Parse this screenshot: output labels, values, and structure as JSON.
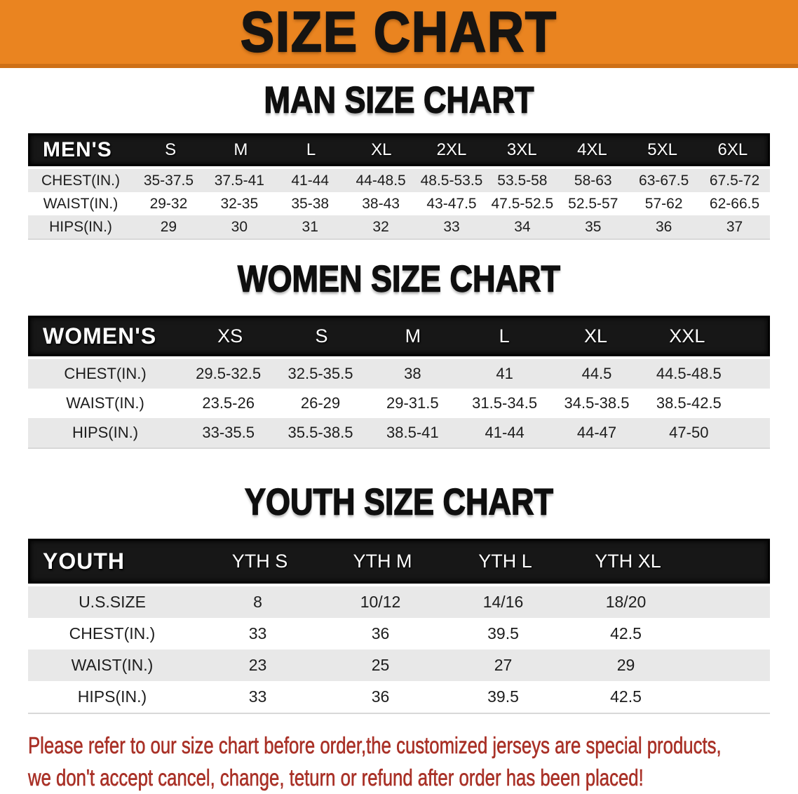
{
  "banner": {
    "title": "SIZE CHART"
  },
  "colors": {
    "banner_orange": "#EA8420",
    "banner_border": "#CE7016",
    "header_black": "#171717",
    "row_gray": "#E8E8E8",
    "row_white": "#FFFFFF",
    "disclaimer_red": "#A93127"
  },
  "sections": [
    {
      "id": "men",
      "title": "MAN SIZE CHART",
      "table": {
        "header_label": "MEN'S",
        "columns": [
          "S",
          "M",
          "L",
          "XL",
          "2XL",
          "3XL",
          "4XL",
          "5XL",
          "6XL"
        ],
        "rows": [
          {
            "label": "CHEST(IN.)",
            "values": [
              "35-37.5",
              "37.5-41",
              "41-44",
              "44-48.5",
              "48.5-53.5",
              "53.5-58",
              "58-63",
              "63-67.5",
              "67.5-72"
            ]
          },
          {
            "label": "WAIST(IN.)",
            "values": [
              "29-32",
              "32-35",
              "35-38",
              "38-43",
              "43-47.5",
              "47.5-52.5",
              "52.5-57",
              "57-62",
              "62-66.5"
            ]
          },
          {
            "label": "HIPS(IN.)",
            "values": [
              "29",
              "30",
              "31",
              "32",
              "33",
              "34",
              "35",
              "36",
              "37"
            ]
          }
        ]
      }
    },
    {
      "id": "women",
      "title": "WOMEN SIZE CHART",
      "table": {
        "header_label": "WOMEN'S",
        "columns": [
          "XS",
          "S",
          "M",
          "L",
          "XL",
          "XXL"
        ],
        "rows": [
          {
            "label": "CHEST(IN.)",
            "values": [
              "29.5-32.5",
              "32.5-35.5",
              "38",
              "41",
              "44.5",
              "44.5-48.5"
            ]
          },
          {
            "label": "WAIST(IN.)",
            "values": [
              "23.5-26",
              "26-29",
              "29-31.5",
              "31.5-34.5",
              "34.5-38.5",
              "38.5-42.5"
            ]
          },
          {
            "label": "HIPS(IN.)",
            "values": [
              "33-35.5",
              "35.5-38.5",
              "38.5-41",
              "41-44",
              "44-47",
              "47-50"
            ]
          }
        ]
      }
    },
    {
      "id": "youth",
      "title": "YOUTH SIZE CHART",
      "table": {
        "header_label": "YOUTH",
        "columns": [
          "YTH S",
          "YTH M",
          "YTH L",
          "YTH XL"
        ],
        "rows": [
          {
            "label": "U.S.SIZE",
            "values": [
              "8",
              "10/12",
              "14/16",
              "18/20"
            ]
          },
          {
            "label": "CHEST(IN.)",
            "values": [
              "33",
              "36",
              "39.5",
              "42.5"
            ]
          },
          {
            "label": "WAIST(IN.)",
            "values": [
              "23",
              "25",
              "27",
              "29"
            ]
          },
          {
            "label": "HIPS(IN.)",
            "values": [
              "33",
              "36",
              "39.5",
              "42.5"
            ]
          }
        ]
      }
    }
  ],
  "disclaimer": {
    "line1": "Please refer to our size chart before order,the customized jerseys are special products,",
    "line2": "we don't accept cancel, change, teturn or refund after order has been placed!"
  }
}
